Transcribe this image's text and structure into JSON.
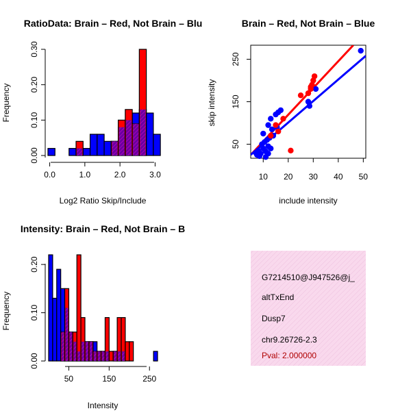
{
  "chart_data": [
    {
      "type": "bar",
      "title": "RatioData: Brain – Red, Not Brain – Blu",
      "xlabel": "Log2 Ratio Skip/Include",
      "ylabel": "Frequency",
      "xlim": [
        -0.05,
        3.05
      ],
      "ylim": [
        0,
        0.3
      ],
      "x_ticks": [
        0.0,
        1.0,
        2.0,
        3.0
      ],
      "x_tick_labels": [
        "0.0",
        "1.0",
        "2.0",
        "3.0"
      ],
      "y_ticks": [
        0.0,
        0.1,
        0.2,
        0.3
      ],
      "y_tick_labels": [
        "0.00",
        "0.10",
        "0.20",
        "0.30"
      ],
      "bin_width": 0.2,
      "series": [
        {
          "name": "Brain",
          "color": "#ff0000",
          "x": [
            0.8,
            1.8,
            2.0,
            2.2,
            2.4,
            2.6
          ],
          "values": [
            0.04,
            0.04,
            0.1,
            0.13,
            0.09,
            0.3
          ]
        },
        {
          "name": "Not Brain",
          "color": "#0000ff",
          "x": [
            -0.05,
            0.35,
            0.55,
            0.75,
            0.95,
            1.15,
            1.35,
            1.55,
            1.75,
            1.95,
            2.15,
            2.35,
            2.55,
            2.75,
            2.95
          ],
          "values": [
            0.02,
            0.0,
            0.02,
            0.02,
            0.02,
            0.06,
            0.06,
            0.04,
            0.04,
            0.08,
            0.1,
            0.12,
            0.13,
            0.12,
            0.06
          ]
        }
      ]
    },
    {
      "type": "scatter",
      "title": "Brain – Red, Not Brain – Blue",
      "xlabel": "include intensity",
      "ylabel": "skip intensity",
      "xlim": [
        5,
        51
      ],
      "ylim": [
        17,
        283
      ],
      "x_ticks": [
        10,
        20,
        30,
        40,
        50
      ],
      "x_tick_labels": [
        "10",
        "20",
        "30",
        "40",
        "50"
      ],
      "y_ticks": [
        50,
        150,
        250
      ],
      "y_tick_labels": [
        "50",
        "150",
        "250"
      ],
      "series": [
        {
          "name": "Brain",
          "color": "#ff0000",
          "x": [
            13,
            15,
            16,
            18,
            21,
            25,
            28,
            29,
            29.5,
            30,
            30.5,
            29
          ],
          "y": [
            70,
            95,
            80,
            110,
            35,
            165,
            170,
            180,
            190,
            200,
            210,
            185
          ],
          "fit": {
            "x0": 5,
            "y0": 25,
            "x1": 46,
            "y1": 283
          }
        },
        {
          "name": "Not Brain",
          "color": "#0000ff",
          "x": [
            7,
            7.5,
            8,
            8.5,
            9,
            9.5,
            10,
            10,
            10.5,
            11,
            11,
            11.5,
            12,
            12,
            12,
            12.5,
            13,
            13,
            13.5,
            14,
            15,
            15.5,
            16,
            17,
            28,
            28.5,
            31,
            49
          ],
          "y": [
            30,
            25,
            35,
            22,
            28,
            50,
            40,
            75,
            55,
            20,
            33,
            60,
            28,
            45,
            95,
            65,
            40,
            110,
            85,
            70,
            120,
            90,
            125,
            130,
            150,
            140,
            180,
            270
          ],
          "fit": {
            "x0": 5,
            "y0": 25,
            "x1": 51,
            "y1": 258
          }
        }
      ]
    },
    {
      "type": "bar",
      "title": "Intensity: Brain – Red, Not Brain – B",
      "title_full": "Gene Itensity: Brain – Red, Not Brain – Blue",
      "xlabel": "Intensity",
      "ylabel": "Frequency",
      "xlim": [
        0,
        270
      ],
      "ylim": [
        0,
        0.22
      ],
      "x_ticks": [
        50,
        150,
        250
      ],
      "x_tick_labels": [
        "50",
        "150",
        "250"
      ],
      "y_ticks": [
        0.0,
        0.1,
        0.2
      ],
      "y_tick_labels": [
        "0.00",
        "0.10",
        "0.20"
      ],
      "bin_width": 10,
      "series": [
        {
          "name": "Brain",
          "color": "#ff0000",
          "x": [
            30,
            40,
            50,
            60,
            70,
            80,
            90,
            100,
            110,
            120,
            130,
            140,
            150,
            160,
            170,
            180,
            190,
            200
          ],
          "values": [
            0.06,
            0.15,
            0.06,
            0.06,
            0.22,
            0.09,
            0.04,
            0.04,
            0.02,
            0.02,
            0.02,
            0.09,
            0.02,
            0.02,
            0.09,
            0.09,
            0.04,
            0.04
          ]
        },
        {
          "name": "Not Brain",
          "color": "#0000ff",
          "x": [
            0,
            10,
            20,
            30,
            40,
            50,
            60,
            70,
            80,
            90,
            100,
            110,
            120,
            130,
            140,
            150,
            160,
            170,
            180,
            190,
            200,
            210,
            220,
            230,
            240,
            250,
            260
          ],
          "values": [
            0.22,
            0.13,
            0.19,
            0.15,
            0.11,
            0.06,
            0.04,
            0.02,
            0.04,
            0.04,
            0.04,
            0.04,
            0.02,
            0.02,
            0.02,
            0.0,
            0.02,
            0.02,
            0.02,
            0.0,
            0.0,
            0.0,
            0.0,
            0.0,
            0.0,
            0.0,
            0.02
          ]
        }
      ]
    }
  ],
  "info_panel": {
    "id_label": "G7214510@J947526@j_",
    "event_type": "altTxEnd",
    "gene": "Dusp7",
    "location": "chr9.26726-2.3",
    "pval": "Pval: 2.000000",
    "bg_color": "#f8d6ec",
    "pval_color": "#b00000"
  }
}
